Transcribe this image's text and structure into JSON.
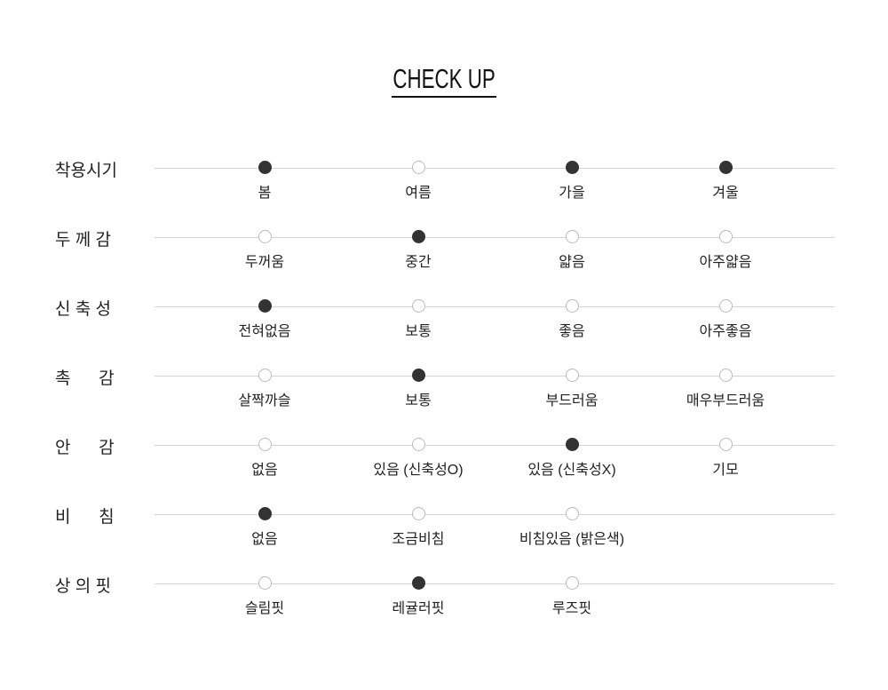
{
  "title": "CHECK UP",
  "colors": {
    "selected": "#333333",
    "unselected": "#ffffff",
    "line": "#d4d4d4"
  },
  "rows": [
    {
      "label": "착용시기",
      "options": [
        {
          "label": "봄",
          "selected": true
        },
        {
          "label": "여름",
          "selected": false
        },
        {
          "label": "가을",
          "selected": true
        },
        {
          "label": "겨울",
          "selected": true
        }
      ]
    },
    {
      "label": "두 께 감",
      "options": [
        {
          "label": "두꺼움",
          "selected": false
        },
        {
          "label": "중간",
          "selected": true
        },
        {
          "label": "얇음",
          "selected": false
        },
        {
          "label": "아주얇음",
          "selected": false
        }
      ]
    },
    {
      "label": "신 축 성",
      "options": [
        {
          "label": "전혀없음",
          "selected": true
        },
        {
          "label": "보통",
          "selected": false
        },
        {
          "label": "좋음",
          "selected": false
        },
        {
          "label": "아주좋음",
          "selected": false
        }
      ]
    },
    {
      "label": "촉      감",
      "options": [
        {
          "label": "살짝까슬",
          "selected": false
        },
        {
          "label": "보통",
          "selected": true
        },
        {
          "label": "부드러움",
          "selected": false
        },
        {
          "label": "매우부드러움",
          "selected": false
        }
      ]
    },
    {
      "label": "안      감",
      "options": [
        {
          "label": "없음",
          "selected": false
        },
        {
          "label": "있음 (신축성O)",
          "selected": false
        },
        {
          "label": "있음 (신축성X)",
          "selected": true
        },
        {
          "label": "기모",
          "selected": false
        }
      ]
    },
    {
      "label": "비      침",
      "options": [
        {
          "label": "없음",
          "selected": true
        },
        {
          "label": "조금비침",
          "selected": false
        },
        {
          "label": "비침있음 (밝은색)",
          "selected": false
        }
      ]
    },
    {
      "label": "상 의 핏",
      "options": [
        {
          "label": "슬림핏",
          "selected": false
        },
        {
          "label": "레귤러핏",
          "selected": true
        },
        {
          "label": "루즈핏",
          "selected": false
        }
      ]
    }
  ]
}
